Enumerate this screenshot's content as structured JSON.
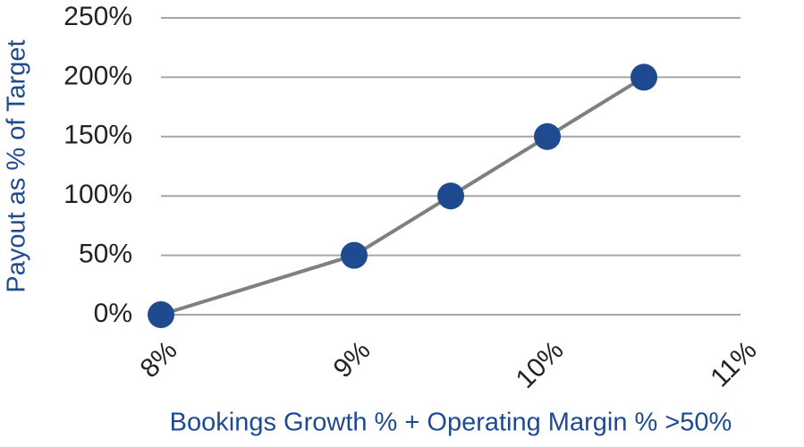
{
  "chart_data": {
    "type": "line",
    "x_label": "Bookings Growth % + Operating Margin % >50%",
    "y_label": "Payout as % of Target",
    "x": [
      8,
      9,
      9.5,
      10,
      10.5
    ],
    "values": [
      0,
      50,
      100,
      150,
      200
    ],
    "color": "#7f7f7f",
    "marker_color": "#1f4a8f",
    "xlim": [
      8,
      11
    ],
    "xticks": [
      {
        "value": 8,
        "label": "8%"
      },
      {
        "value": 9,
        "label": "9%"
      },
      {
        "value": 10,
        "label": "10%"
      },
      {
        "value": 11,
        "label": "11%"
      }
    ],
    "ylim": [
      0,
      250
    ],
    "yticks": [
      {
        "value": 0,
        "label": "0%"
      },
      {
        "value": 50,
        "label": "50%"
      },
      {
        "value": 100,
        "label": "100%"
      },
      {
        "value": 150,
        "label": "150%"
      },
      {
        "value": 200,
        "label": "200%"
      },
      {
        "value": 250,
        "label": "250%"
      }
    ],
    "grid": true
  }
}
